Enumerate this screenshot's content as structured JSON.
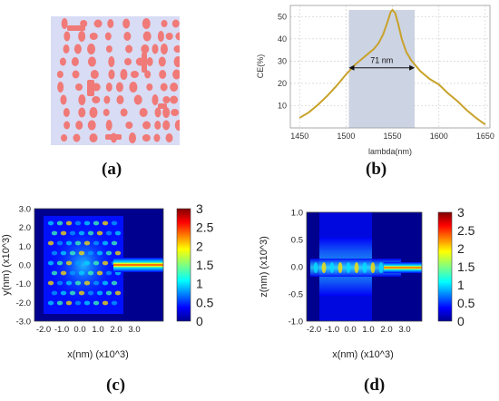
{
  "panel_labels": {
    "a": "(a)",
    "b": "(b)",
    "c": "(c)",
    "d": "(d)"
  },
  "colors": {
    "pattern_pink": "#f07a78",
    "pattern_bg": "#d8dcf5",
    "curve": "#c8a22a",
    "band_fill": "#ccd3e3",
    "axis": "#888888"
  },
  "chart_data": [
    {
      "panel": "b",
      "type": "line",
      "xlabel": "lambda(nm)",
      "ylabel": "CE(%)",
      "xlim": [
        1440,
        1655
      ],
      "ylim": [
        0,
        55
      ],
      "xticks": [
        1450,
        1500,
        1550,
        1600,
        1650
      ],
      "yticks": [
        0,
        10,
        20,
        30,
        40,
        50
      ],
      "grid": true,
      "annotation": "71 nm",
      "band": [
        1503,
        1574
      ],
      "x": [
        1450,
        1460,
        1470,
        1480,
        1490,
        1500,
        1510,
        1520,
        1530,
        1535,
        1540,
        1545,
        1548,
        1550,
        1553,
        1556,
        1560,
        1565,
        1570,
        1580,
        1590,
        1600,
        1610,
        1620,
        1630,
        1640,
        1650
      ],
      "y": [
        4.5,
        7,
        10.5,
        14.5,
        19,
        24,
        28.5,
        32,
        35.5,
        38,
        42,
        48,
        52,
        53,
        51.5,
        47,
        40,
        34,
        30.5,
        25.5,
        22,
        19.5,
        15.5,
        12,
        8,
        4.5,
        1.5
      ]
    },
    {
      "panel": "c",
      "type": "heatmap",
      "xlabel": "x(nm) (x10^3)",
      "ylabel": "y(nm) (x10^3)",
      "xticks": [
        "-2.0",
        "-1.0",
        "0.0",
        "1.0",
        "2.0",
        "3.0"
      ],
      "yticks": [
        "3.0",
        "2.0",
        "1.0",
        "0.0",
        "-1.0",
        "-2.0",
        "-3.0"
      ],
      "colorbar_ticks": [
        "3",
        "2.5",
        "2",
        "1.5",
        "1",
        "0.5",
        "0"
      ],
      "colorbar_range": [
        0,
        3
      ]
    },
    {
      "panel": "d",
      "type": "heatmap",
      "xlabel": "x(nm) (x10^3)",
      "ylabel": "z(nm) (x10^3)",
      "xticks": [
        "-2.0",
        "-1.0",
        "0.0",
        "1.0",
        "2.0",
        "3.0"
      ],
      "yticks": [
        "1.0",
        "0.5",
        "0.0",
        "-0.5",
        "-1.0"
      ],
      "colorbar_ticks": [
        "3",
        "2.5",
        "2",
        "1.5",
        "1",
        "0.5",
        "0"
      ],
      "colorbar_range": [
        0,
        3
      ]
    }
  ]
}
